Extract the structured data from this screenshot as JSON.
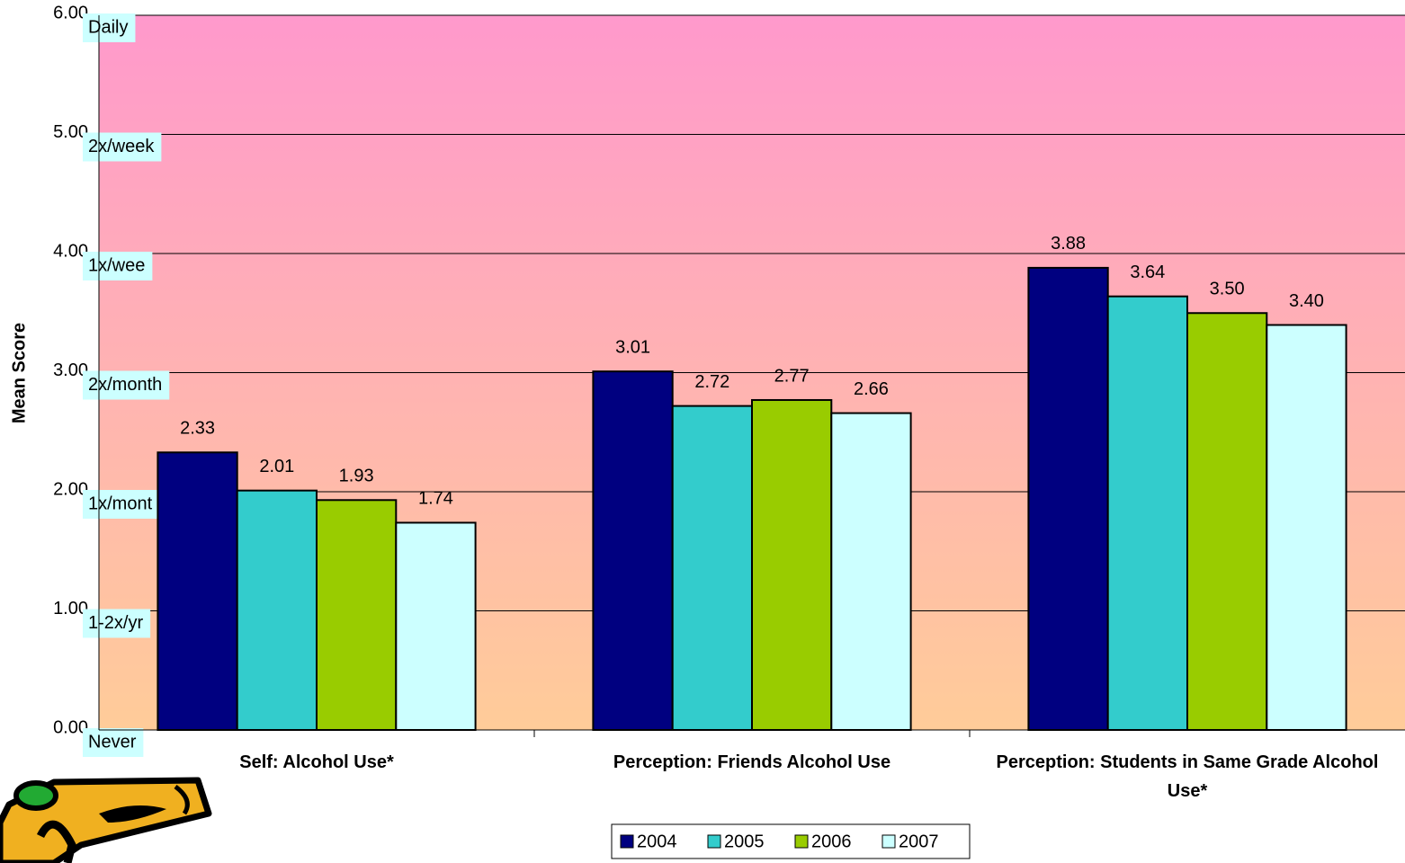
{
  "chart_data": {
    "type": "bar",
    "y_label": "Mean Score",
    "categories": [
      "Self: Alcohol Use*",
      "Perception: Friends Alcohol Use",
      "Perception: Students in Same Grade Alcohol Use*"
    ],
    "series": [
      {
        "name": "2004",
        "color": "#000080",
        "values": [
          2.33,
          3.01,
          3.88
        ],
        "value_labels": [
          "2.33",
          "3.01",
          "3.88"
        ]
      },
      {
        "name": "2005",
        "color": "#33cccc",
        "values": [
          2.01,
          2.72,
          3.64
        ],
        "value_labels": [
          "2.01",
          "2.72",
          "3.64"
        ]
      },
      {
        "name": "2006",
        "color": "#99cc00",
        "values": [
          1.93,
          2.77,
          3.5
        ],
        "value_labels": [
          "1.93",
          "2.77",
          "3.50"
        ]
      },
      {
        "name": "2007",
        "color": "#ccffff",
        "values": [
          1.74,
          2.66,
          3.4
        ],
        "value_labels": [
          "1.74",
          "2.66",
          "3.40"
        ]
      }
    ],
    "ylim": [
      0,
      6
    ],
    "yticks": [
      {
        "value": 0,
        "label": "0.00"
      },
      {
        "value": 1,
        "label": "1.00"
      },
      {
        "value": 2,
        "label": "2.00"
      },
      {
        "value": 3,
        "label": "3.00"
      },
      {
        "value": 4,
        "label": "4.00"
      },
      {
        "value": 5,
        "label": "5.00"
      },
      {
        "value": 6,
        "label": "6.00"
      }
    ],
    "level_labels": [
      "Never",
      "1-2x/yr",
      "1x/mont",
      "2x/month",
      "1x/wee",
      "2x/week",
      "Daily"
    ],
    "grid": true,
    "legend": "bottom"
  }
}
